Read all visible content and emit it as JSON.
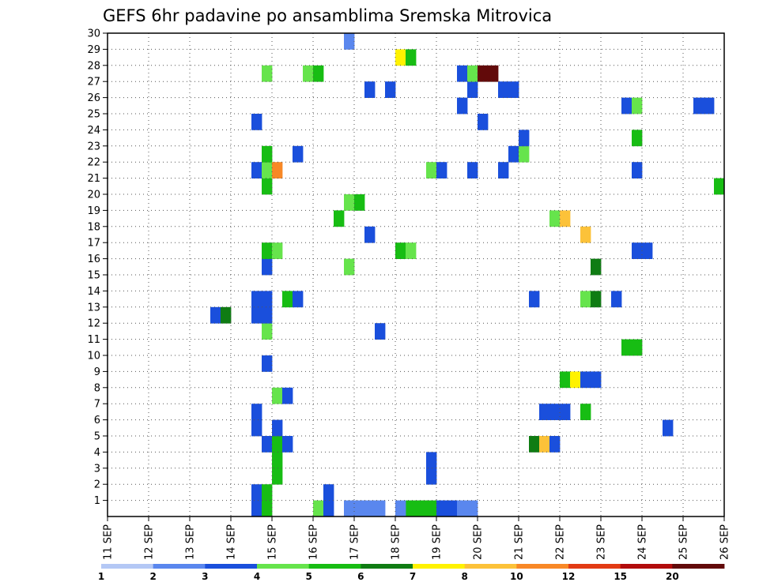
{
  "chart_data": {
    "type": "heatmap",
    "title": "GEFS 6hr padavine po ansamblima Sremska Mitrovica",
    "xlabel": "",
    "ylabel": "",
    "x_tick_labels": [
      "11 SEP",
      "12 SEP",
      "13 SEP",
      "14 SEP",
      "15 SEP",
      "16 SEP",
      "17 SEP",
      "18 SEP",
      "19 SEP",
      "20 SEP",
      "21 SEP",
      "22 SEP",
      "23 SEP",
      "24 SEP",
      "25 SEP",
      "26 SEP"
    ],
    "xlim": [
      0,
      60
    ],
    "y_tick_labels": [
      "1",
      "2",
      "3",
      "4",
      "5",
      "6",
      "7",
      "8",
      "9",
      "10",
      "11",
      "12",
      "13",
      "14",
      "15",
      "16",
      "17",
      "18",
      "19",
      "20",
      "21",
      "22",
      "23",
      "24",
      "25",
      "26",
      "27",
      "28",
      "29",
      "30"
    ],
    "ylim": [
      0,
      30
    ],
    "grid": true,
    "legend": {
      "position": "bottom",
      "labels": [
        "1",
        "2",
        "3",
        "4",
        "5",
        "6",
        "7",
        "8",
        "10",
        "12",
        "15",
        "20"
      ],
      "colors": [
        "#b4c8f5",
        "#5a87ee",
        "#1a4fdc",
        "#66e44c",
        "#17bd13",
        "#0f7c13",
        "#fff200",
        "#fcc239",
        "#f88826",
        "#e23b14",
        "#b20c0c",
        "#620a0a"
      ]
    },
    "cells": [
      [
        14,
        0,
        2
      ],
      [
        15,
        0,
        4
      ],
      [
        20,
        0,
        3
      ],
      [
        21,
        0,
        2
      ],
      [
        29,
        0,
        4
      ],
      [
        30,
        0,
        4
      ],
      [
        31,
        0,
        4
      ],
      [
        23,
        0,
        1
      ],
      [
        24,
        0,
        1
      ],
      [
        25,
        0,
        1
      ],
      [
        26,
        0,
        1
      ],
      [
        28,
        0,
        1
      ],
      [
        32,
        0,
        2
      ],
      [
        33,
        0,
        2
      ],
      [
        34,
        0,
        1
      ],
      [
        35,
        0,
        1
      ],
      [
        14,
        1,
        2
      ],
      [
        15,
        1,
        4
      ],
      [
        21,
        1,
        2
      ],
      [
        16,
        2,
        4
      ],
      [
        31,
        2,
        2
      ],
      [
        16,
        3,
        4
      ],
      [
        31,
        3,
        2
      ],
      [
        15,
        4,
        2
      ],
      [
        16,
        4,
        4
      ],
      [
        17,
        4,
        2
      ],
      [
        41,
        4,
        5
      ],
      [
        42,
        4,
        7
      ],
      [
        43,
        4,
        2
      ],
      [
        14,
        5,
        2
      ],
      [
        16,
        5,
        2
      ],
      [
        54,
        5,
        2
      ],
      [
        14,
        6,
        2
      ],
      [
        42,
        6,
        2
      ],
      [
        43,
        6,
        2
      ],
      [
        44,
        6,
        2
      ],
      [
        46,
        6,
        4
      ],
      [
        16,
        7,
        3
      ],
      [
        17,
        7,
        2
      ],
      [
        44,
        8,
        4
      ],
      [
        45,
        8,
        6
      ],
      [
        46,
        8,
        2
      ],
      [
        47,
        8,
        2
      ],
      [
        15,
        9,
        2
      ],
      [
        50,
        10,
        4
      ],
      [
        51,
        10,
        4
      ],
      [
        15,
        11,
        3
      ],
      [
        26,
        11,
        2
      ],
      [
        10,
        12,
        2
      ],
      [
        11,
        12,
        5
      ],
      [
        14,
        12,
        2
      ],
      [
        15,
        12,
        2
      ],
      [
        14,
        13,
        2
      ],
      [
        15,
        13,
        2
      ],
      [
        17,
        13,
        4
      ],
      [
        18,
        13,
        2
      ],
      [
        41,
        13,
        2
      ],
      [
        46,
        13,
        3
      ],
      [
        47,
        13,
        5
      ],
      [
        49,
        13,
        2
      ],
      [
        15,
        15,
        2
      ],
      [
        23,
        15,
        3
      ],
      [
        47,
        15,
        5
      ],
      [
        15,
        16,
        4
      ],
      [
        16,
        16,
        3
      ],
      [
        28,
        16,
        4
      ],
      [
        29,
        16,
        3
      ],
      [
        51,
        16,
        2
      ],
      [
        52,
        16,
        2
      ],
      [
        25,
        17,
        2
      ],
      [
        46,
        17,
        7
      ],
      [
        22,
        18,
        4
      ],
      [
        43,
        18,
        3
      ],
      [
        44,
        18,
        7
      ],
      [
        23,
        19,
        3
      ],
      [
        24,
        19,
        4
      ],
      [
        15,
        20,
        4
      ],
      [
        59,
        20,
        4
      ],
      [
        14,
        21,
        2
      ],
      [
        15,
        21,
        3
      ],
      [
        16,
        21,
        8
      ],
      [
        31,
        21,
        3
      ],
      [
        32,
        21,
        2
      ],
      [
        35,
        21,
        2
      ],
      [
        38,
        21,
        2
      ],
      [
        51,
        21,
        2
      ],
      [
        15,
        22,
        4
      ],
      [
        18,
        22,
        2
      ],
      [
        39,
        22,
        2
      ],
      [
        40,
        22,
        3
      ],
      [
        40,
        23,
        2
      ],
      [
        51,
        23,
        4
      ],
      [
        14,
        24,
        2
      ],
      [
        36,
        24,
        2
      ],
      [
        34,
        25,
        2
      ],
      [
        50,
        25,
        2
      ],
      [
        51,
        25,
        3
      ],
      [
        57,
        25,
        2
      ],
      [
        58,
        25,
        2
      ],
      [
        25,
        26,
        2
      ],
      [
        27,
        26,
        2
      ],
      [
        35,
        26,
        2
      ],
      [
        38,
        26,
        2
      ],
      [
        39,
        26,
        2
      ],
      [
        15,
        27,
        3
      ],
      [
        19,
        27,
        3
      ],
      [
        20,
        27,
        4
      ],
      [
        34,
        27,
        2
      ],
      [
        35,
        27,
        3
      ],
      [
        36,
        27,
        11
      ],
      [
        37,
        27,
        11
      ],
      [
        28,
        28,
        6
      ],
      [
        29,
        28,
        4
      ],
      [
        23,
        29,
        1
      ]
    ]
  }
}
